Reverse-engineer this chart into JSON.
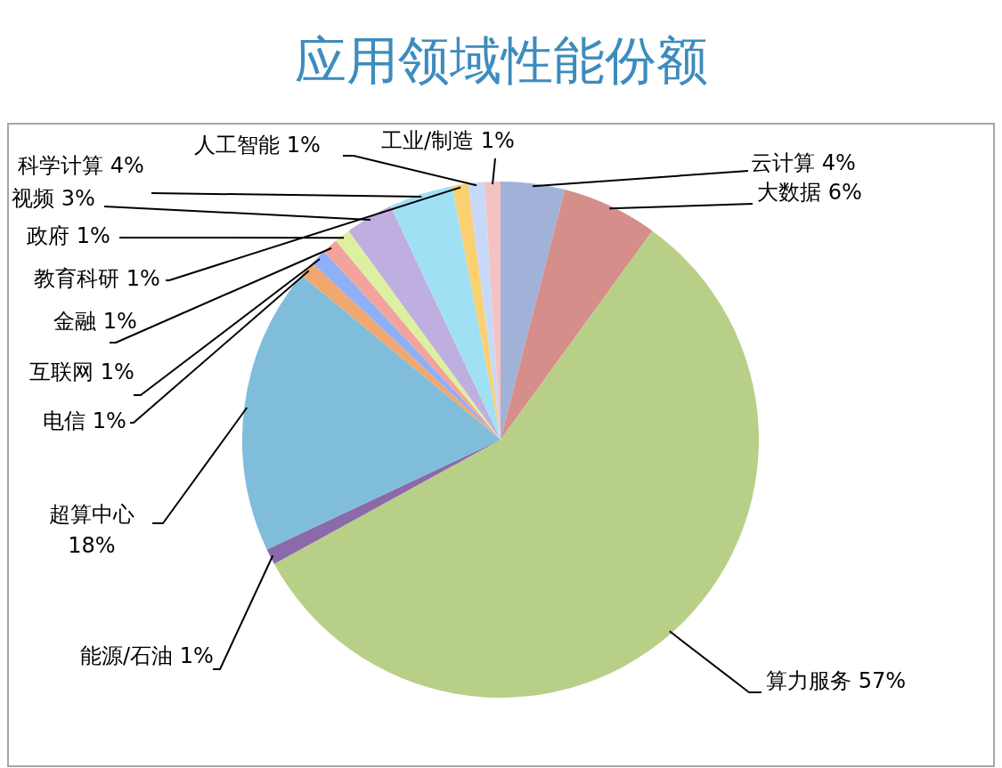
{
  "chart_data": {
    "type": "pie",
    "title": "应用领域性能份额",
    "categories": [
      "云计算",
      "大数据",
      "算力服务",
      "能源/石油",
      "超算中心",
      "电信",
      "互联网",
      "金融",
      "政府",
      "视频",
      "科学计算",
      "教育科研",
      "人工智能",
      "工业/制造"
    ],
    "values": [
      4,
      6,
      57,
      1,
      18,
      1,
      1,
      1,
      1,
      3,
      4,
      1,
      1,
      1
    ],
    "value_labels": [
      "4%",
      "6%",
      "57%",
      "1%",
      "18%",
      "1%",
      "1%",
      "1%",
      "1%",
      "3%",
      "4%",
      "1%",
      "1%",
      "1%"
    ],
    "colors": [
      "#a0b2d8",
      "#d68e8a",
      "#b8cf88",
      "#8a6aa8",
      "#80bddb",
      "#f0a870",
      "#8fb0f6",
      "#f2a49c",
      "#dcf0a0",
      "#bfaee0",
      "#a0e0f4",
      "#fad070",
      "#c8d8f8",
      "#f4c2c2"
    ]
  }
}
